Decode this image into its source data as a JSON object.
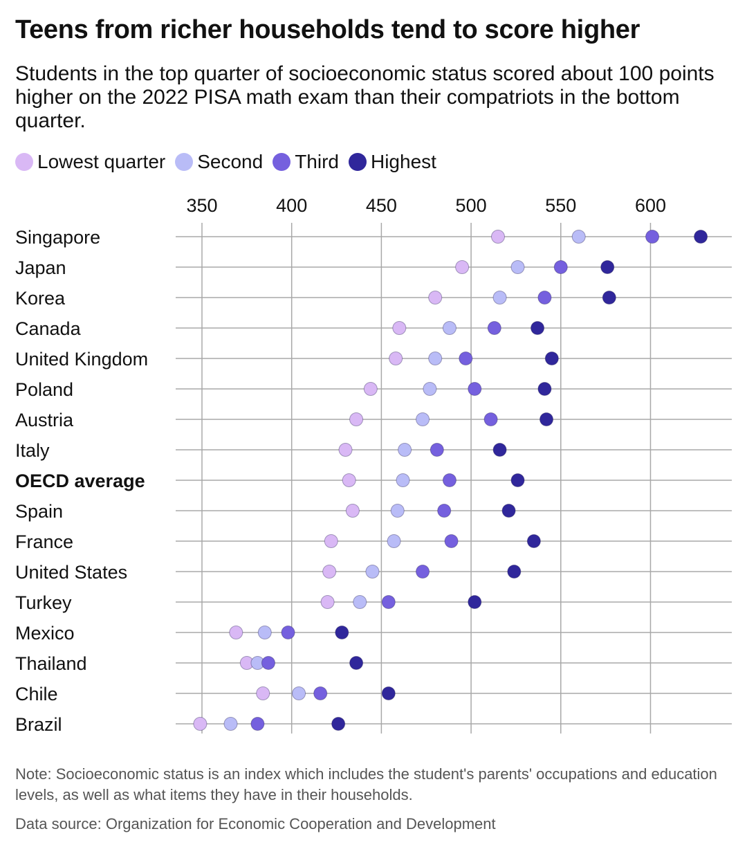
{
  "chart_data": {
    "type": "scatter",
    "title": "Teens from richer households tend to score higher",
    "subtitle": "Students in the top quarter of socioeconomic status scored about 100 points higher on the 2022 PISA math exam than their compatriots in the bottom quarter.",
    "xlim": [
      335,
      645
    ],
    "x_ticks": [
      350,
      400,
      450,
      500,
      550,
      600
    ],
    "grid": true,
    "legend_position": "top-left",
    "categories": [
      "Singapore",
      "Japan",
      "Korea",
      "Canada",
      "United Kingdom",
      "Poland",
      "Austria",
      "Italy",
      "OECD average",
      "Spain",
      "France",
      "United States",
      "Turkey",
      "Mexico",
      "Thailand",
      "Chile",
      "Brazil"
    ],
    "highlight_category": "OECD average",
    "series": [
      {
        "name": "Lowest quarter",
        "color": "#d9b8f5",
        "values": [
          515,
          495,
          480,
          460,
          458,
          444,
          436,
          430,
          432,
          434,
          422,
          421,
          420,
          369,
          375,
          384,
          349
        ]
      },
      {
        "name": "Second",
        "color": "#b9bcf7",
        "values": [
          560,
          526,
          516,
          488,
          480,
          477,
          473,
          463,
          462,
          459,
          457,
          445,
          438,
          385,
          381,
          404,
          366
        ]
      },
      {
        "name": "Third",
        "color": "#7560de",
        "values": [
          601,
          550,
          541,
          513,
          497,
          502,
          511,
          481,
          488,
          485,
          489,
          473,
          454,
          398,
          387,
          416,
          381
        ]
      },
      {
        "name": "Highest",
        "color": "#30279b",
        "values": [
          628,
          576,
          577,
          537,
          545,
          541,
          542,
          516,
          526,
          521,
          535,
          524,
          502,
          428,
          436,
          454,
          426
        ]
      }
    ]
  },
  "note": "Note: Socioeconomic status is an index which includes the student's parents' occupations and education levels, as well as what items they have in their households.",
  "source": "Data source: Organization for Economic Cooperation and Development"
}
